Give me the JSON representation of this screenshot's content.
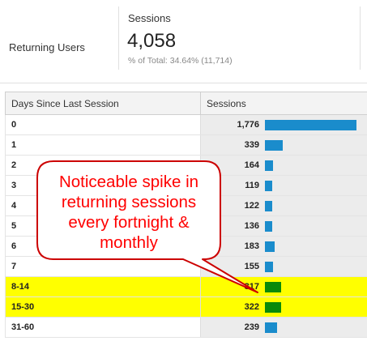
{
  "summary": {
    "segment_label": "Returning Users",
    "metric_name": "Sessions",
    "metric_value": "4,058",
    "metric_sub": "% of Total: 34.64% (11,714)"
  },
  "table": {
    "headers": [
      "Days Since Last Session",
      "Sessions"
    ],
    "max_value": 1776,
    "rows": [
      {
        "label": "0",
        "value": 1776,
        "display": "1,776",
        "highlight": false
      },
      {
        "label": "1",
        "value": 339,
        "display": "339",
        "highlight": false
      },
      {
        "label": "2",
        "value": 164,
        "display": "164",
        "highlight": false
      },
      {
        "label": "3",
        "value": 119,
        "display": "119",
        "highlight": false
      },
      {
        "label": "4",
        "value": 122,
        "display": "122",
        "highlight": false
      },
      {
        "label": "5",
        "value": 136,
        "display": "136",
        "highlight": false
      },
      {
        "label": "6",
        "value": 183,
        "display": "183",
        "highlight": false
      },
      {
        "label": "7",
        "value": 155,
        "display": "155",
        "highlight": false
      },
      {
        "label": "8-14",
        "value": 317,
        "display": "317",
        "highlight": true
      },
      {
        "label": "15-30",
        "value": 322,
        "display": "322",
        "highlight": true
      },
      {
        "label": "31-60",
        "value": 239,
        "display": "239",
        "highlight": false
      }
    ]
  },
  "callout": {
    "lines": [
      "Noticeable spike in",
      "returning sessions",
      "every fortnight &",
      "monthly"
    ]
  },
  "colors": {
    "bar": "#1a8ccc",
    "bar_highlight": "#0a8a0a",
    "highlight_bg": "#ffff00",
    "callout_text": "#ff0000",
    "callout_border": "#cc0000"
  }
}
